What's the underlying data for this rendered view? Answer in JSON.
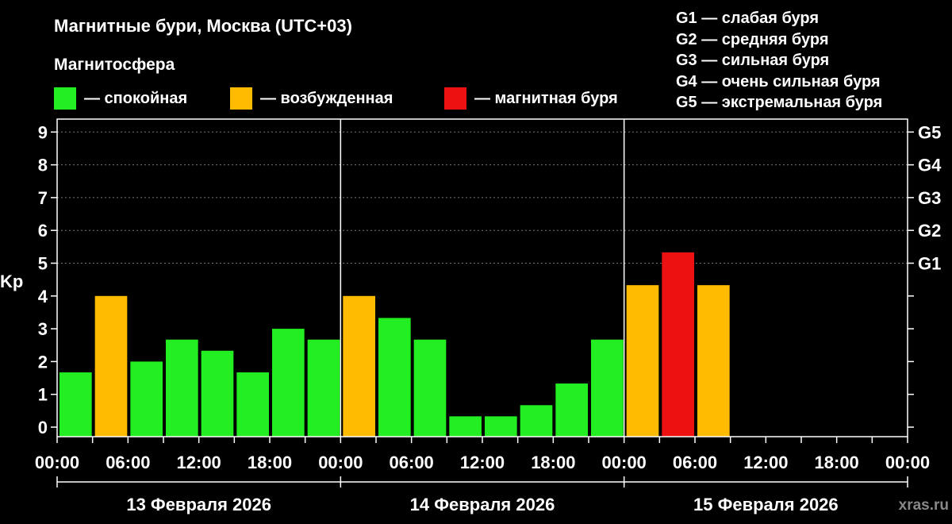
{
  "title": "Магнитные бури, Москва (UTC+03)",
  "subtitle": "Магнитосфера",
  "legend": [
    {
      "label": "— спокойная",
      "color": "#22ee22"
    },
    {
      "label": "— возбужденная",
      "color": "#ffbb00"
    },
    {
      "label": "— магнитная буря",
      "color": "#ee1111"
    }
  ],
  "g_legend": [
    "G1 — слабая буря",
    "G2 — средняя буря",
    "G3 — сильная буря",
    "G4 — очень сильная буря",
    "G5 — экстремальная буря"
  ],
  "watermark": "xras.ru",
  "chart_data": {
    "type": "bar",
    "ylabel": "Kp",
    "ylim": [
      0,
      9
    ],
    "yticks": [
      "0",
      "1",
      "2",
      "3",
      "4",
      "5",
      "6",
      "7",
      "8",
      "9"
    ],
    "right_ticks": [
      {
        "label": "G1",
        "kp": 5
      },
      {
        "label": "G2",
        "kp": 6
      },
      {
        "label": "G3",
        "kp": 7
      },
      {
        "label": "G4",
        "kp": 8
      },
      {
        "label": "G5",
        "kp": 9
      }
    ],
    "xticks": [
      "00:00",
      "06:00",
      "12:00",
      "18:00",
      "00:00",
      "06:00",
      "12:00",
      "18:00",
      "00:00",
      "06:00",
      "12:00",
      "18:00",
      "00:00"
    ],
    "days": [
      "13 Февраля 2026",
      "14 Февраля 2026",
      "15 Февраля 2026"
    ],
    "grid": "horizontal dashed",
    "values": [
      1.67,
      4.0,
      2.0,
      2.67,
      2.33,
      1.67,
      3.0,
      2.67,
      4.0,
      3.33,
      2.67,
      0.33,
      0.33,
      0.67,
      1.33,
      2.67,
      4.33,
      5.33,
      4.33
    ],
    "colors": {
      "calm": "#22ee22",
      "active": "#ffbb00",
      "storm": "#ee1111"
    }
  }
}
